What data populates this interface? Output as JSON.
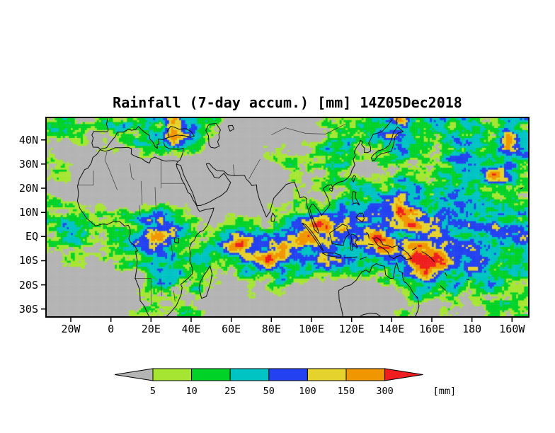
{
  "chart_data": {
    "type": "heatmap",
    "title": "Rainfall (7-day accum.) [mm] 14Z05Dec2018",
    "xlabel": "",
    "ylabel": "",
    "lon_range": [
      -32,
      208
    ],
    "lat_range": [
      -33,
      49
    ],
    "lat_ticks": [
      {
        "label": "40N",
        "value": 40
      },
      {
        "label": "30N",
        "value": 30
      },
      {
        "label": "20N",
        "value": 20
      },
      {
        "label": "10N",
        "value": 10
      },
      {
        "label": "EQ",
        "value": 0
      },
      {
        "label": "10S",
        "value": -10
      },
      {
        "label": "20S",
        "value": -20
      },
      {
        "label": "30S",
        "value": -30
      }
    ],
    "lon_ticks": [
      {
        "label": "20W",
        "value": -20
      },
      {
        "label": "0",
        "value": 0
      },
      {
        "label": "20E",
        "value": 20
      },
      {
        "label": "40E",
        "value": 40
      },
      {
        "label": "60E",
        "value": 60
      },
      {
        "label": "80E",
        "value": 80
      },
      {
        "label": "100E",
        "value": 100
      },
      {
        "label": "120E",
        "value": 120
      },
      {
        "label": "140E",
        "value": 140
      },
      {
        "label": "160E",
        "value": 160
      },
      {
        "label": "180",
        "value": 180
      },
      {
        "label": "160W",
        "value": 200
      }
    ],
    "colorbar": {
      "labels": [
        "5",
        "10",
        "25",
        "50",
        "100",
        "150",
        "300"
      ],
      "units_label": "[mm]",
      "segment_colors": [
        "#b4b4b4",
        "#a6e632",
        "#00d228",
        "#00c3c3",
        "#2341f0",
        "#e6d22c",
        "#f09600",
        "#f01e1e"
      ],
      "bin_ranges": [
        "<5",
        "5-10",
        "10-25",
        "25-50",
        "50-100",
        "100-150",
        "150-300",
        ">300"
      ]
    },
    "background_color": "#b4b4b4",
    "grid_cols": 36,
    "grid_rows": 16,
    "grid_encoding": "each digit 0-7 indexes the colorbar bins, row 0 = 46N, col 0 = 29W, cells ~6.7 deg lon x 5.1 deg lat",
    "intensity_grid": [
      "221122232632200000001222334323232232",
      "111012223642100000000122343222323262",
      "101121122321000011012221223222232363",
      "210000000000000011112221122122443232",
      "110000000000000000111221112212233632",
      "000000000000000000111122212322222221",
      "100000000000000000111122234323422122",
      "222111123210000011223334346434332322",
      "232222234321122112346443444643433432",
      "122123346432234433464444643344323433",
      "112112344322346446434433464664343323",
      "011011223323223464334442344666434332",
      "000001122222112223222321223464333232",
      "000000012212101112100000012232322322",
      "000000011111000100000000001211212121",
      "000000121121000000000000001101111212"
    ]
  }
}
